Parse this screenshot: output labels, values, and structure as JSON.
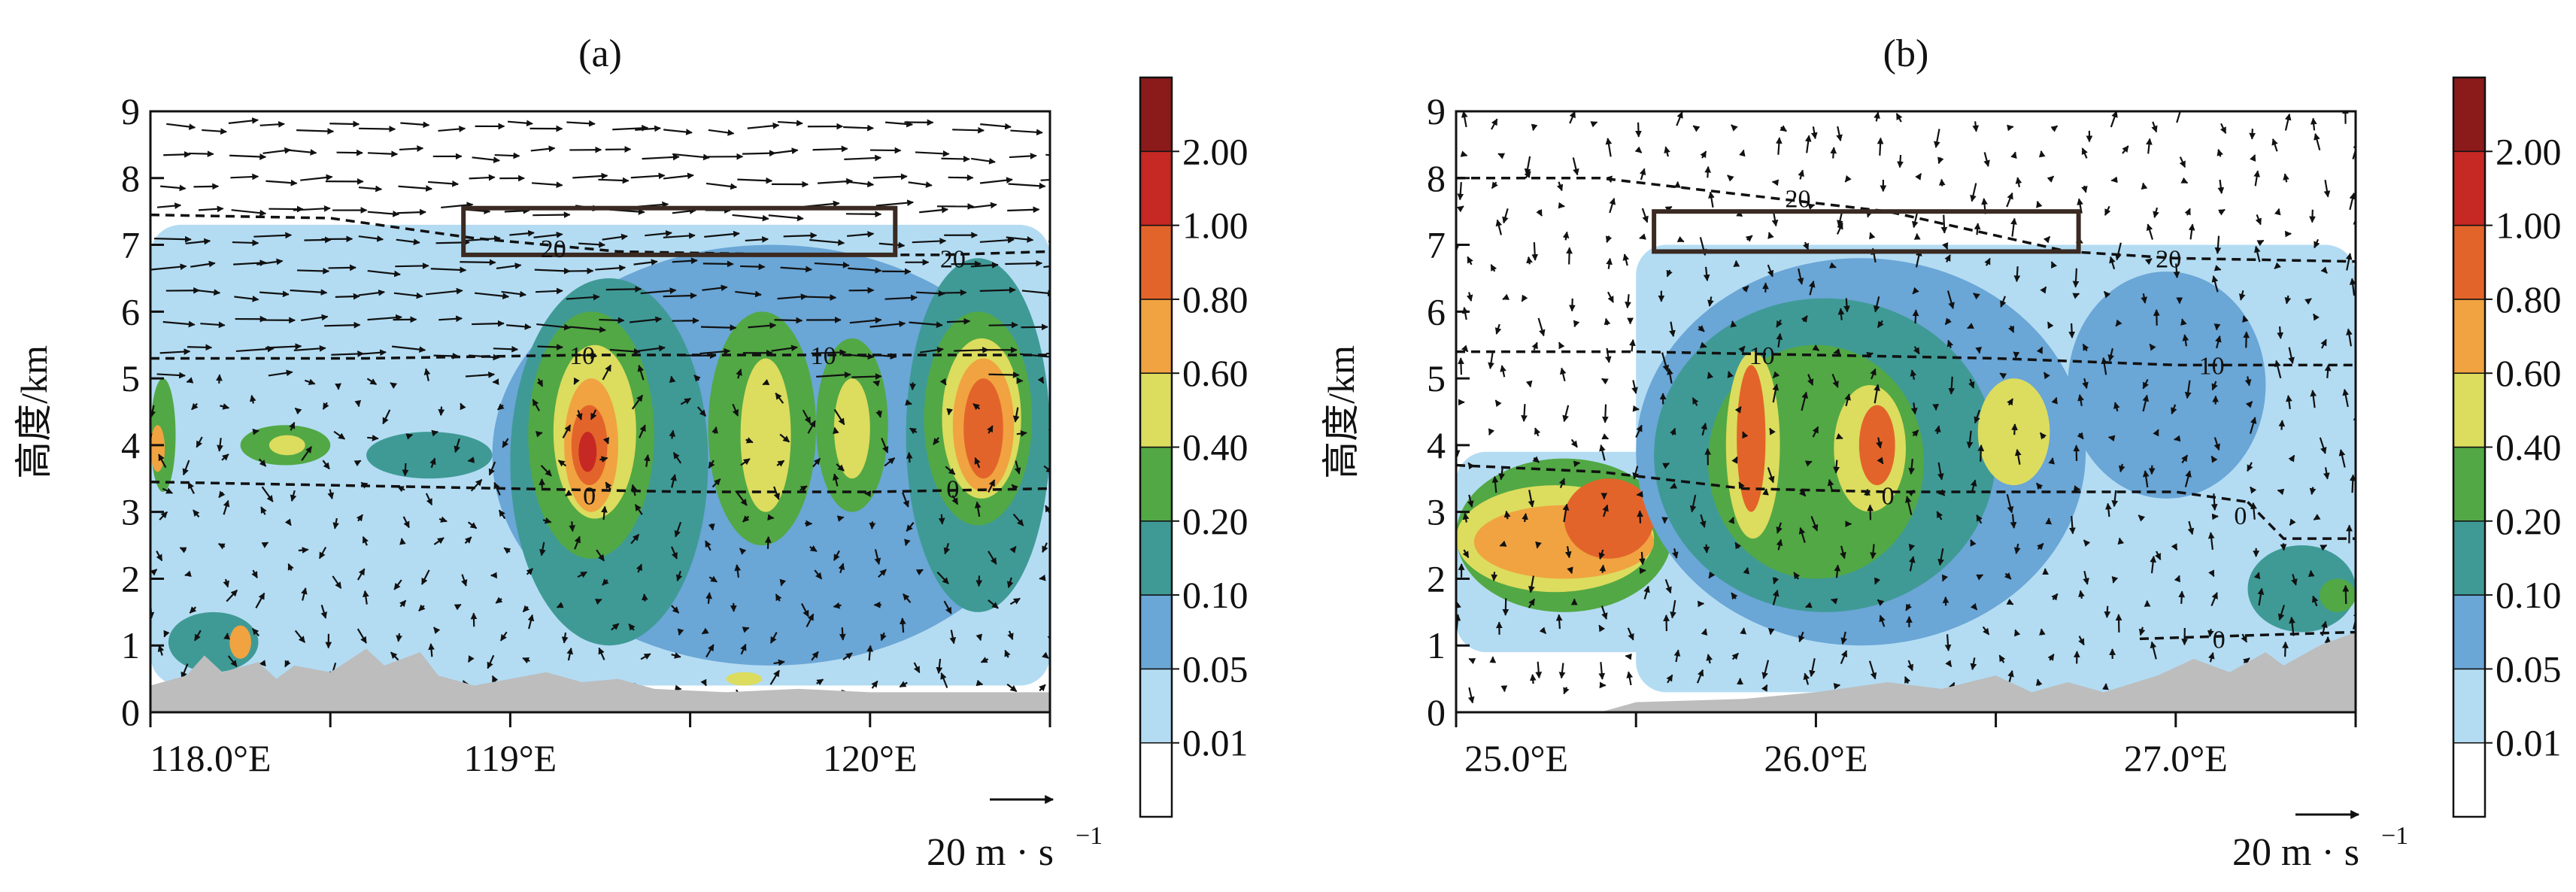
{
  "figure": {
    "colors": {
      "bands": [
        "#ffffff",
        "#b3dcf3",
        "#6aa6d6",
        "#3f9a96",
        "#52a844",
        "#dcdc5e",
        "#f0a340",
        "#e3642a",
        "#c62823",
        "#8b1a1a"
      ],
      "terrain": "#bdbdbd",
      "frame": "#111111"
    },
    "colorbar": {
      "labels": [
        "0.01",
        "0.05",
        "0.10",
        "0.20",
        "0.40",
        "0.60",
        "0.80",
        "1.00",
        "2.00"
      ]
    },
    "wind_reference": {
      "label": "20 m · s",
      "exponent": "−1"
    }
  },
  "chart_data": [
    {
      "type": "heatmap",
      "title": "(a)",
      "ylabel": "高度/km",
      "xlim": [
        118.0,
        120.5
      ],
      "ylim": [
        0,
        9
      ],
      "x_ticks": [
        {
          "value": 118.0,
          "label": "118.0°E"
        },
        {
          "value": 119.0,
          "label": "119°E"
        },
        {
          "value": 120.0,
          "label": "120°E"
        }
      ],
      "x_minor_ticks": [
        118.5,
        119.5,
        120.5
      ],
      "y_ticks": [
        0,
        1,
        2,
        3,
        4,
        5,
        6,
        7,
        8,
        9
      ],
      "contour_lines": [
        {
          "label": "0",
          "points": [
            [
              118.0,
              3.45
            ],
            [
              118.5,
              3.4
            ],
            [
              119.0,
              3.35
            ],
            [
              119.5,
              3.3
            ],
            [
              120.0,
              3.3
            ],
            [
              120.5,
              3.35
            ]
          ],
          "label_at": [
            119.22,
            3.25
          ]
        },
        {
          "label": "0",
          "points": [],
          "label_at": [
            120.23,
            3.35
          ]
        },
        {
          "label": "10",
          "points": [
            [
              118.0,
              5.3
            ],
            [
              118.6,
              5.3
            ],
            [
              119.2,
              5.35
            ],
            [
              119.8,
              5.35
            ],
            [
              120.5,
              5.35
            ]
          ],
          "label_at": [
            119.2,
            5.35
          ]
        },
        {
          "label": "10",
          "points": [],
          "label_at": [
            119.87,
            5.35
          ]
        },
        {
          "label": "20",
          "points": [
            [
              118.0,
              7.45
            ],
            [
              118.5,
              7.4
            ],
            [
              118.9,
              7.1
            ],
            [
              119.3,
              6.9
            ],
            [
              119.8,
              6.85
            ],
            [
              120.2,
              6.85
            ],
            [
              120.5,
              6.9
            ]
          ],
          "label_at": [
            119.12,
            6.95
          ]
        },
        {
          "label": "20",
          "points": [],
          "label_at": [
            120.23,
            6.8
          ]
        }
      ],
      "box": {
        "x": [
          118.87,
          120.07
        ],
        "y": [
          6.85,
          7.55
        ]
      },
      "cells": [
        {
          "x": [
            118.95,
            120.5
          ],
          "y": [
            0.7,
            7.0
          ],
          "level": 2
        },
        {
          "x": [
            119.0,
            119.55
          ],
          "y": [
            1.0,
            6.5
          ],
          "level": 3
        },
        {
          "x": [
            119.05,
            119.4
          ],
          "y": [
            2.3,
            6.0
          ],
          "level": 4
        },
        {
          "x": [
            119.12,
            119.35
          ],
          "y": [
            2.9,
            5.5
          ],
          "level": 5
        },
        {
          "x": [
            119.15,
            119.3
          ],
          "y": [
            3.0,
            5.0
          ],
          "level": 6
        },
        {
          "x": [
            119.17,
            119.27
          ],
          "y": [
            3.4,
            4.6
          ],
          "level": 7
        },
        {
          "x": [
            119.19,
            119.24
          ],
          "y": [
            3.6,
            4.2
          ],
          "level": 8
        },
        {
          "x": [
            119.55,
            119.85
          ],
          "y": [
            2.5,
            6.0
          ],
          "level": 4
        },
        {
          "x": [
            119.64,
            119.78
          ],
          "y": [
            3.0,
            5.3
          ],
          "level": 5
        },
        {
          "x": [
            119.85,
            120.05
          ],
          "y": [
            3.0,
            5.6
          ],
          "level": 4
        },
        {
          "x": [
            119.9,
            120.0
          ],
          "y": [
            3.5,
            5.0
          ],
          "level": 5
        },
        {
          "x": [
            120.1,
            120.5
          ],
          "y": [
            1.5,
            6.8
          ],
          "level": 3
        },
        {
          "x": [
            120.15,
            120.45
          ],
          "y": [
            2.8,
            6.0
          ],
          "level": 4
        },
        {
          "x": [
            120.2,
            120.42
          ],
          "y": [
            3.2,
            5.6
          ],
          "level": 5
        },
        {
          "x": [
            120.23,
            120.4
          ],
          "y": [
            3.3,
            5.3
          ],
          "level": 6
        },
        {
          "x": [
            120.26,
            120.37
          ],
          "y": [
            3.5,
            5.0
          ],
          "level": 7
        },
        {
          "x": [
            118.0,
            118.07
          ],
          "y": [
            3.3,
            5.0
          ],
          "level": 4
        },
        {
          "x": [
            118.0,
            118.04
          ],
          "y": [
            3.6,
            4.3
          ],
          "level": 6
        },
        {
          "x": [
            118.25,
            118.5
          ],
          "y": [
            3.7,
            4.3
          ],
          "level": 4
        },
        {
          "x": [
            118.33,
            118.43
          ],
          "y": [
            3.85,
            4.15
          ],
          "level": 5
        },
        {
          "x": [
            118.6,
            118.95
          ],
          "y": [
            3.5,
            4.2
          ],
          "level": 3
        },
        {
          "x": [
            118.05,
            118.3
          ],
          "y": [
            0.6,
            1.5
          ],
          "level": 3
        },
        {
          "x": [
            118.22,
            118.28
          ],
          "y": [
            0.8,
            1.3
          ],
          "level": 6
        },
        {
          "x": [
            119.6,
            119.7
          ],
          "y": [
            0.4,
            0.6
          ],
          "level": 5
        }
      ],
      "light_areas": [
        {
          "x": [
            118.0,
            120.5
          ],
          "y": [
            0.4,
            7.3
          ]
        },
        {
          "x": [
            118.45,
            118.6
          ],
          "y": [
            4.0,
            6.3
          ]
        },
        {
          "x": [
            118.6,
            118.75
          ],
          "y": [
            4.0,
            6.3
          ]
        }
      ],
      "terrain": [
        [
          118.0,
          0.4
        ],
        [
          118.1,
          0.55
        ],
        [
          118.15,
          0.85
        ],
        [
          118.2,
          0.6
        ],
        [
          118.3,
          0.75
        ],
        [
          118.35,
          0.5
        ],
        [
          118.4,
          0.7
        ],
        [
          118.5,
          0.6
        ],
        [
          118.6,
          0.95
        ],
        [
          118.65,
          0.7
        ],
        [
          118.75,
          0.9
        ],
        [
          118.8,
          0.55
        ],
        [
          118.9,
          0.4
        ],
        [
          119.0,
          0.5
        ],
        [
          119.1,
          0.6
        ],
        [
          119.2,
          0.45
        ],
        [
          119.3,
          0.5
        ],
        [
          119.4,
          0.35
        ],
        [
          119.6,
          0.3
        ],
        [
          119.8,
          0.35
        ],
        [
          120.0,
          0.3
        ],
        [
          120.2,
          0.3
        ],
        [
          120.4,
          0.3
        ],
        [
          120.5,
          0.3
        ]
      ]
    },
    {
      "type": "heatmap",
      "title": "(b)",
      "ylabel": "高度/km",
      "xlim": [
        25.0,
        27.5
      ],
      "ylim": [
        0,
        9
      ],
      "x_ticks": [
        {
          "value": 25.0,
          "label": "25.0°E"
        },
        {
          "value": 26.0,
          "label": "26.0°E"
        },
        {
          "value": 27.0,
          "label": "27.0°E"
        }
      ],
      "x_minor_ticks": [
        25.5,
        26.5,
        27.5
      ],
      "y_ticks": [
        0,
        1,
        2,
        3,
        4,
        5,
        6,
        7,
        8,
        9
      ],
      "contour_lines": [
        {
          "label": "0",
          "points": [
            [
              25.0,
              3.7
            ],
            [
              25.4,
              3.6
            ],
            [
              25.8,
              3.35
            ],
            [
              26.2,
              3.3
            ],
            [
              26.6,
              3.3
            ],
            [
              27.0,
              3.3
            ],
            [
              27.2,
              3.15
            ]
          ],
          "label_at": [
            26.2,
            3.25
          ]
        },
        {
          "label": "0",
          "points": [
            [
              27.2,
              3.15
            ],
            [
              27.3,
              2.6
            ],
            [
              27.5,
              2.6
            ]
          ],
          "label_at": [
            27.18,
            2.95
          ]
        },
        {
          "label": "0",
          "points": [
            [
              26.9,
              1.1
            ],
            [
              27.2,
              1.15
            ],
            [
              27.5,
              1.2
            ]
          ],
          "label_at": [
            27.12,
            1.1
          ]
        },
        {
          "label": "10",
          "points": [
            [
              25.0,
              5.4
            ],
            [
              25.5,
              5.4
            ],
            [
              26.0,
              5.35
            ],
            [
              26.5,
              5.3
            ],
            [
              27.0,
              5.2
            ],
            [
              27.5,
              5.2
            ]
          ],
          "label_at": [
            25.85,
            5.35
          ]
        },
        {
          "label": "10",
          "points": [],
          "label_at": [
            27.1,
            5.2
          ]
        },
        {
          "label": "20",
          "points": [
            [
              25.0,
              8.0
            ],
            [
              25.4,
              8.0
            ],
            [
              25.8,
              7.75
            ],
            [
              26.2,
              7.5
            ],
            [
              26.7,
              6.9
            ],
            [
              27.0,
              6.8
            ],
            [
              27.5,
              6.75
            ]
          ],
          "label_at": [
            25.95,
            7.7
          ]
        },
        {
          "label": "20",
          "points": [],
          "label_at": [
            26.98,
            6.8
          ]
        }
      ],
      "box": {
        "x": [
          25.55,
          26.73
        ],
        "y": [
          6.9,
          7.5
        ]
      },
      "cells": [
        {
          "x": [
            25.0,
            25.6
          ],
          "y": [
            1.5,
            3.8
          ],
          "level": 4
        },
        {
          "x": [
            25.0,
            25.55
          ],
          "y": [
            1.8,
            3.4
          ],
          "level": 5
        },
        {
          "x": [
            25.05,
            25.55
          ],
          "y": [
            2.0,
            3.1
          ],
          "level": 6
        },
        {
          "x": [
            25.3,
            25.55
          ],
          "y": [
            2.3,
            3.5
          ],
          "level": 7
        },
        {
          "x": [
            25.5,
            26.75
          ],
          "y": [
            1.0,
            6.8
          ],
          "level": 2
        },
        {
          "x": [
            25.55,
            26.5
          ],
          "y": [
            1.5,
            6.2
          ],
          "level": 3
        },
        {
          "x": [
            25.7,
            26.3
          ],
          "y": [
            2.0,
            5.5
          ],
          "level": 4
        },
        {
          "x": [
            25.75,
            25.9
          ],
          "y": [
            2.6,
            5.4
          ],
          "level": 5
        },
        {
          "x": [
            25.78,
            25.86
          ],
          "y": [
            3.0,
            5.2
          ],
          "level": 7
        },
        {
          "x": [
            26.05,
            26.25
          ],
          "y": [
            3.0,
            4.9
          ],
          "level": 5
        },
        {
          "x": [
            26.12,
            26.22
          ],
          "y": [
            3.4,
            4.6
          ],
          "level": 7
        },
        {
          "x": [
            26.45,
            26.65
          ],
          "y": [
            3.4,
            5.0
          ],
          "level": 5
        },
        {
          "x": [
            26.7,
            27.25
          ],
          "y": [
            3.2,
            6.6
          ],
          "level": 2
        },
        {
          "x": [
            27.2,
            27.5
          ],
          "y": [
            1.2,
            2.5
          ],
          "level": 3
        },
        {
          "x": [
            27.4,
            27.5
          ],
          "y": [
            1.5,
            2.0
          ],
          "level": 4
        }
      ],
      "light_areas": [
        {
          "x": [
            25.0,
            27.5
          ],
          "y": [
            0.9,
            3.9
          ]
        },
        {
          "x": [
            25.5,
            27.5
          ],
          "y": [
            0.3,
            7.0
          ]
        }
      ],
      "terrain": [
        [
          25.0,
          0.0
        ],
        [
          25.4,
          0.0
        ],
        [
          25.5,
          0.15
        ],
        [
          25.8,
          0.2
        ],
        [
          26.0,
          0.3
        ],
        [
          26.2,
          0.45
        ],
        [
          26.35,
          0.35
        ],
        [
          26.5,
          0.55
        ],
        [
          26.6,
          0.3
        ],
        [
          26.7,
          0.45
        ],
        [
          26.8,
          0.3
        ],
        [
          26.95,
          0.55
        ],
        [
          27.05,
          0.8
        ],
        [
          27.15,
          0.6
        ],
        [
          27.25,
          0.9
        ],
        [
          27.3,
          0.7
        ],
        [
          27.4,
          1.0
        ],
        [
          27.5,
          1.2
        ]
      ]
    }
  ]
}
